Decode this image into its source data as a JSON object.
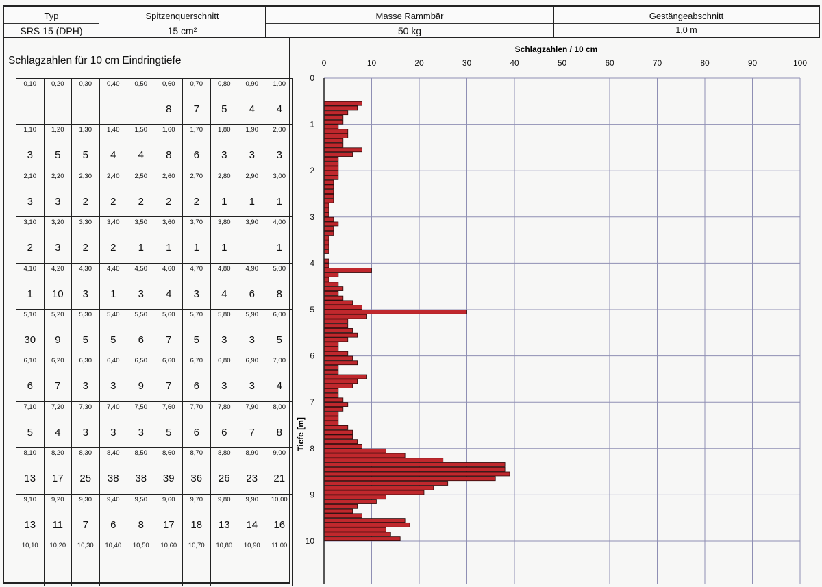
{
  "header": {
    "typ_label": "Typ",
    "typ_value": "SRS 15 (DPH)",
    "spitze_label": "Spitzenquerschnitt",
    "spitze_value": "15 cm²",
    "masse_label": "Masse Rammbär",
    "masse_value": "50 kg",
    "gestaenge_label": "Gestängeabschnitt",
    "gestaenge_value": "1,0 m"
  },
  "table": {
    "title": "Schlagzahlen für 10 cm Eindringtiefe",
    "rows": [
      {
        "depths": [
          "0,10",
          "0,20",
          "0,30",
          "0,40",
          "0,50",
          "0,60",
          "0,70",
          "0,80",
          "0,90",
          "1,00"
        ],
        "values": [
          "",
          "",
          "",
          "",
          "",
          "8",
          "7",
          "5",
          "4",
          "4"
        ]
      },
      {
        "depths": [
          "1,10",
          "1,20",
          "1,30",
          "1,40",
          "1,50",
          "1,60",
          "1,70",
          "1,80",
          "1,90",
          "2,00"
        ],
        "values": [
          "3",
          "5",
          "5",
          "4",
          "4",
          "8",
          "6",
          "3",
          "3",
          "3"
        ]
      },
      {
        "depths": [
          "2,10",
          "2,20",
          "2,30",
          "2,40",
          "2,50",
          "2,60",
          "2,70",
          "2,80",
          "2,90",
          "3,00"
        ],
        "values": [
          "3",
          "3",
          "2",
          "2",
          "2",
          "2",
          "2",
          "1",
          "1",
          "1"
        ]
      },
      {
        "depths": [
          "3,10",
          "3,20",
          "3,30",
          "3,40",
          "3,50",
          "3,60",
          "3,70",
          "3,80",
          "3,90",
          "4,00"
        ],
        "values": [
          "2",
          "3",
          "2",
          "2",
          "1",
          "1",
          "1",
          "1",
          "",
          "1"
        ]
      },
      {
        "depths": [
          "4,10",
          "4,20",
          "4,30",
          "4,40",
          "4,50",
          "4,60",
          "4,70",
          "4,80",
          "4,90",
          "5,00"
        ],
        "values": [
          "1",
          "10",
          "3",
          "1",
          "3",
          "4",
          "3",
          "4",
          "6",
          "8"
        ]
      },
      {
        "depths": [
          "5,10",
          "5,20",
          "5,30",
          "5,40",
          "5,50",
          "5,60",
          "5,70",
          "5,80",
          "5,90",
          "6,00"
        ],
        "values": [
          "30",
          "9",
          "5",
          "5",
          "6",
          "7",
          "5",
          "3",
          "3",
          "5"
        ]
      },
      {
        "depths": [
          "6,10",
          "6,20",
          "6,30",
          "6,40",
          "6,50",
          "6,60",
          "6,70",
          "6,80",
          "6,90",
          "7,00"
        ],
        "values": [
          "6",
          "7",
          "3",
          "3",
          "9",
          "7",
          "6",
          "3",
          "3",
          "4"
        ]
      },
      {
        "depths": [
          "7,10",
          "7,20",
          "7,30",
          "7,40",
          "7,50",
          "7,60",
          "7,70",
          "7,80",
          "7,90",
          "8,00"
        ],
        "values": [
          "5",
          "4",
          "3",
          "3",
          "3",
          "5",
          "6",
          "6",
          "7",
          "8"
        ]
      },
      {
        "depths": [
          "8,10",
          "8,20",
          "8,30",
          "8,40",
          "8,50",
          "8,60",
          "8,70",
          "8,80",
          "8,90",
          "9,00"
        ],
        "values": [
          "13",
          "17",
          "25",
          "38",
          "38",
          "39",
          "36",
          "26",
          "23",
          "21"
        ]
      },
      {
        "depths": [
          "9,10",
          "9,20",
          "9,30",
          "9,40",
          "9,50",
          "9,60",
          "9,70",
          "9,80",
          "9,90",
          "10,00"
        ],
        "values": [
          "13",
          "11",
          "7",
          "6",
          "8",
          "17",
          "18",
          "13",
          "14",
          "16"
        ]
      },
      {
        "depths": [
          "10,10",
          "10,20",
          "10,30",
          "10,40",
          "10,50",
          "10,60",
          "10,70",
          "10,80",
          "10,90",
          "11,00"
        ],
        "values": [
          "",
          "",
          "",
          "",
          "",
          "",
          "",
          "",
          "",
          ""
        ]
      }
    ]
  },
  "chart_data": {
    "type": "bar",
    "orientation": "horizontal",
    "title": "Schlagzahlen / 10 cm",
    "ylabel": "Tiefe [m]",
    "xlim": [
      0,
      100
    ],
    "ylim": [
      10,
      0
    ],
    "x_ticks": [
      "0",
      "10",
      "20",
      "30",
      "40",
      "50",
      "60",
      "70",
      "80",
      "90",
      "100"
    ],
    "y_ticks": [
      "0",
      "1",
      "2",
      "3",
      "4",
      "5",
      "6",
      "7",
      "8",
      "9",
      "10"
    ],
    "bar_color": "#c0282d",
    "grid": true,
    "depth_start": [
      0.5,
      0.6,
      0.7,
      0.8,
      0.9,
      1.0,
      1.1,
      1.2,
      1.3,
      1.4,
      1.5,
      1.6,
      1.7,
      1.8,
      1.9,
      2.0,
      2.1,
      2.2,
      2.3,
      2.4,
      2.5,
      2.6,
      2.7,
      2.8,
      2.9,
      3.0,
      3.1,
      3.2,
      3.3,
      3.4,
      3.5,
      3.6,
      3.7,
      3.8,
      3.9,
      4.0,
      4.1,
      4.2,
      4.3,
      4.4,
      4.5,
      4.6,
      4.7,
      4.8,
      4.9,
      5.0,
      5.1,
      5.2,
      5.3,
      5.4,
      5.5,
      5.6,
      5.7,
      5.8,
      5.9,
      6.0,
      6.1,
      6.2,
      6.3,
      6.4,
      6.5,
      6.6,
      6.7,
      6.8,
      6.9,
      7.0,
      7.1,
      7.2,
      7.3,
      7.4,
      7.5,
      7.6,
      7.7,
      7.8,
      7.9,
      8.0,
      8.1,
      8.2,
      8.3,
      8.4,
      8.5,
      8.6,
      8.7,
      8.8,
      8.9,
      9.0,
      9.1,
      9.2,
      9.3,
      9.4,
      9.5,
      9.6,
      9.7,
      9.8,
      9.9
    ],
    "values": [
      8,
      7,
      5,
      4,
      4,
      3,
      5,
      5,
      4,
      4,
      8,
      6,
      3,
      3,
      3,
      3,
      3,
      2,
      2,
      2,
      2,
      2,
      1,
      1,
      1,
      2,
      3,
      2,
      2,
      1,
      1,
      1,
      1,
      0,
      1,
      1,
      10,
      3,
      1,
      3,
      4,
      3,
      4,
      6,
      8,
      30,
      9,
      5,
      5,
      6,
      7,
      5,
      3,
      3,
      5,
      6,
      7,
      3,
      3,
      9,
      7,
      6,
      3,
      3,
      4,
      5,
      4,
      3,
      3,
      3,
      5,
      6,
      6,
      7,
      8,
      13,
      17,
      25,
      38,
      38,
      39,
      36,
      26,
      23,
      21,
      13,
      11,
      7,
      6,
      8,
      17,
      18,
      13,
      14,
      16
    ]
  }
}
